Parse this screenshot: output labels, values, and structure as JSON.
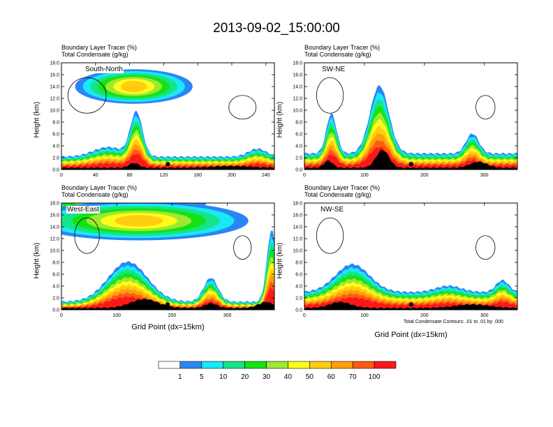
{
  "title": "2013-09-02_15:00:00",
  "subtitles": [
    "Boundary Layer Tracer   (%)",
    "Total Condensate   (g/kg)"
  ],
  "ylabel": "Height (km)",
  "xlabel": "Grid Point (dx=15km)",
  "contour_note": "Total Condensate Contours: .01 to .01 by .000",
  "colorbar": {
    "colors": [
      "#ffffff",
      "#2a86f6",
      "#19e9f6",
      "#16e488",
      "#15e215",
      "#9fe832",
      "#fffc1a",
      "#ffcc12",
      "#ff9e0e",
      "#ff5a12",
      "#f9181a"
    ],
    "labels": [
      "1",
      "5",
      "10",
      "20",
      "30",
      "40",
      "50",
      "60",
      "70",
      "100"
    ]
  },
  "chart_data": [
    {
      "type": "heatmap",
      "name": "South-North",
      "ylim": [
        0,
        18
      ],
      "yticks": [
        "0.0",
        "2.0",
        "4.0",
        "6.0",
        "8.0",
        "10.0",
        "12.0",
        "14.0",
        "16.0",
        "18.0"
      ],
      "xlim": [
        0,
        250
      ],
      "xticks": [
        "0",
        "40",
        "80",
        "120",
        "160",
        "200",
        "240"
      ],
      "marker_x": 125
    },
    {
      "type": "heatmap",
      "name": "SW-NE",
      "ylim": [
        0,
        18
      ],
      "yticks": [
        "0.0",
        "2.0",
        "4.0",
        "6.0",
        "8.0",
        "10.0",
        "12.0",
        "14.0",
        "16.0",
        "18.0"
      ],
      "xlim": [
        0,
        355
      ],
      "xticks": [
        "0",
        "100",
        "200",
        "300"
      ],
      "marker_x": 178
    },
    {
      "type": "heatmap",
      "name": "West-East",
      "ylim": [
        0,
        18
      ],
      "yticks": [
        "0.0",
        "2.0",
        "4.0",
        "6.0",
        "8.0",
        "10.0",
        "12.0",
        "14.0",
        "16.0",
        "18.0"
      ],
      "xlim": [
        0,
        385
      ],
      "xticks": [
        "0",
        "100",
        "200",
        "300"
      ],
      "marker_x": 192
    },
    {
      "type": "heatmap",
      "name": "NW-SE",
      "ylim": [
        0,
        18
      ],
      "yticks": [
        "0.0",
        "2.0",
        "4.0",
        "6.0",
        "8.0",
        "10.0",
        "12.0",
        "14.0",
        "16.0",
        "18.0"
      ],
      "xlim": [
        0,
        355
      ],
      "xticks": [
        "0",
        "100",
        "200",
        "300"
      ],
      "marker_x": 178
    }
  ]
}
